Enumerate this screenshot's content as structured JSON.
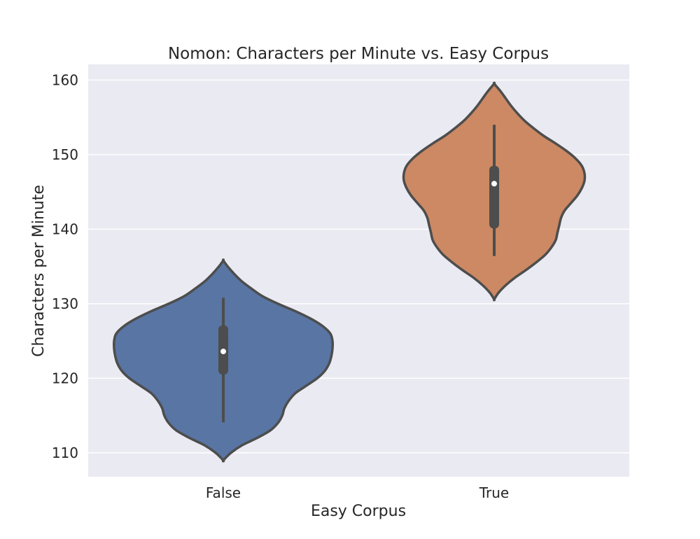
{
  "chart_data": {
    "type": "violin",
    "title": "Nomon: Characters per Minute vs. Easy Corpus",
    "xlabel": "Easy Corpus",
    "ylabel": "Characters per Minute",
    "categories": [
      "False",
      "True"
    ],
    "ylim": [
      106.8,
      162.1
    ],
    "yticks": [
      110,
      120,
      130,
      140,
      150,
      160
    ],
    "grid": true,
    "legend": "none",
    "background": "#eaeaf2",
    "grid_color": "#ffffff",
    "outline_color": "#4d4d4d",
    "series": [
      {
        "category": "False",
        "color": "#5875a4",
        "median": 123.6,
        "q1": 120.5,
        "q3": 127.1,
        "whisker_low": 114.1,
        "whisker_high": 130.8,
        "min": 109.0,
        "max": 135.8,
        "density": [
          [
            109.0,
            0.0
          ],
          [
            110.0,
            0.07
          ],
          [
            111.0,
            0.17
          ],
          [
            112.0,
            0.31
          ],
          [
            113.0,
            0.43
          ],
          [
            114.0,
            0.5
          ],
          [
            115.0,
            0.54
          ],
          [
            116.0,
            0.56
          ],
          [
            117.0,
            0.6
          ],
          [
            118.0,
            0.66
          ],
          [
            119.0,
            0.76
          ],
          [
            120.0,
            0.86
          ],
          [
            121.0,
            0.93
          ],
          [
            122.0,
            0.97
          ],
          [
            123.0,
            0.99
          ],
          [
            124.0,
            1.0
          ],
          [
            125.0,
            1.0
          ],
          [
            126.0,
            0.98
          ],
          [
            127.0,
            0.91
          ],
          [
            128.0,
            0.8
          ],
          [
            129.0,
            0.66
          ],
          [
            130.0,
            0.5
          ],
          [
            131.0,
            0.36
          ],
          [
            132.0,
            0.26
          ],
          [
            133.0,
            0.17
          ],
          [
            134.0,
            0.1
          ],
          [
            135.0,
            0.04
          ],
          [
            135.8,
            0.0
          ]
        ]
      },
      {
        "category": "True",
        "color": "#cc8963",
        "median": 146.1,
        "q1": 140.1,
        "q3": 148.5,
        "whisker_low": 136.4,
        "whisker_high": 154.0,
        "min": 130.6,
        "max": 159.5,
        "density": [
          [
            130.6,
            0.0
          ],
          [
            131.5,
            0.05
          ],
          [
            132.5,
            0.13
          ],
          [
            133.5,
            0.23
          ],
          [
            134.5,
            0.35
          ],
          [
            135.5,
            0.46
          ],
          [
            136.5,
            0.56
          ],
          [
            137.5,
            0.63
          ],
          [
            138.5,
            0.68
          ],
          [
            139.5,
            0.7
          ],
          [
            140.5,
            0.72
          ],
          [
            141.5,
            0.74
          ],
          [
            142.5,
            0.78
          ],
          [
            143.5,
            0.85
          ],
          [
            144.5,
            0.92
          ],
          [
            145.5,
            0.97
          ],
          [
            146.5,
            1.0
          ],
          [
            147.5,
            1.0
          ],
          [
            148.5,
            0.97
          ],
          [
            149.5,
            0.9
          ],
          [
            150.5,
            0.8
          ],
          [
            151.5,
            0.68
          ],
          [
            152.5,
            0.55
          ],
          [
            153.5,
            0.44
          ],
          [
            154.5,
            0.34
          ],
          [
            155.5,
            0.26
          ],
          [
            156.5,
            0.19
          ],
          [
            157.5,
            0.13
          ],
          [
            158.5,
            0.07
          ],
          [
            159.5,
            0.0
          ]
        ]
      }
    ]
  }
}
